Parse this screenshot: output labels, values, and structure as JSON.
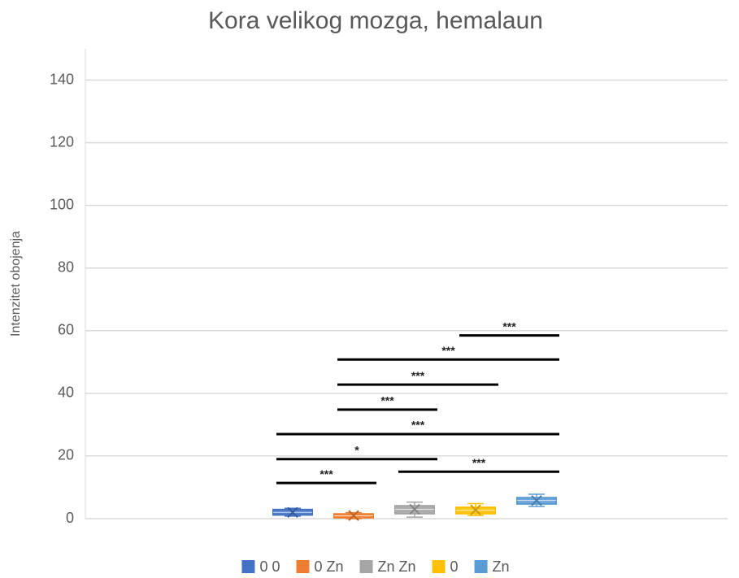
{
  "chart_data": {
    "type": "box",
    "title": "Kora velikog mozga, hemalaun",
    "y_label": "Intenzitet obojenja",
    "ylim": [
      0,
      150
    ],
    "yticks": [
      0,
      20,
      40,
      60,
      80,
      100,
      120,
      140
    ],
    "grid": true,
    "legend": "bottom",
    "series": [
      {
        "name": "0 0",
        "color": "#4472c4",
        "min": 0.8,
        "q1": 1.2,
        "median": 2,
        "q3": 2.9,
        "max": 3.3,
        "mean": 2
      },
      {
        "name": "0 Zn",
        "color": "#ed7d31",
        "min": 0,
        "q1": 0.3,
        "median": 0.9,
        "q3": 1.5,
        "max": 1.9,
        "mean": 1
      },
      {
        "name": "Zn Zn",
        "color": "#a5a5a5",
        "min": 0.5,
        "q1": 1.6,
        "median": 3,
        "q3": 4.1,
        "max": 5.3,
        "mean": 3
      },
      {
        "name": "0",
        "color": "#ffc000",
        "min": 1,
        "q1": 1.6,
        "median": 2.7,
        "q3": 3.6,
        "max": 4.8,
        "mean": 2.8
      },
      {
        "name": "Zn",
        "color": "#5b9bd5",
        "min": 3.9,
        "q1": 4.7,
        "median": 5.8,
        "q3": 6.7,
        "max": 7.8,
        "mean": 5.8
      }
    ],
    "significance": [
      {
        "label": "***",
        "y": 58.5,
        "from": "0",
        "to": "Zn"
      },
      {
        "label": "***",
        "y": 50.8,
        "from": "0 Zn",
        "to": "Zn"
      },
      {
        "label": "***",
        "y": 42.8,
        "from": "0 Zn",
        "to": "0"
      },
      {
        "label": "***",
        "y": 34.8,
        "from": "0 Zn",
        "to": "Zn Zn"
      },
      {
        "label": "***",
        "y": 27,
        "from": "0 0",
        "to": "Zn"
      },
      {
        "label": "*",
        "y": 19,
        "from": "0 0",
        "to": "Zn Zn"
      },
      {
        "label": "***",
        "y": 15,
        "from": "Zn Zn",
        "to": "Zn"
      },
      {
        "label": "***",
        "y": 11.4,
        "from": "0 0",
        "to": "0 Zn"
      }
    ]
  }
}
